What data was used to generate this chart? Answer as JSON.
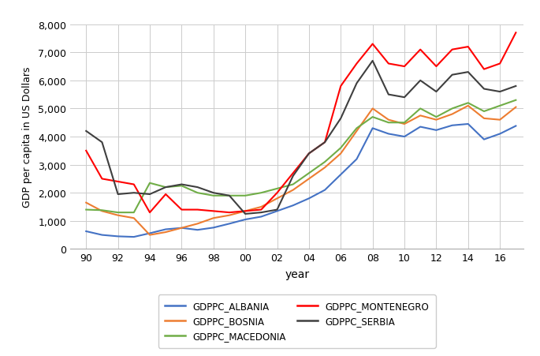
{
  "years": [
    1990,
    1991,
    1992,
    1993,
    1994,
    1995,
    1996,
    1997,
    1998,
    1999,
    2000,
    2001,
    2002,
    2003,
    2004,
    2005,
    2006,
    2007,
    2008,
    2009,
    2010,
    2011,
    2012,
    2013,
    2014,
    2015,
    2016,
    2017
  ],
  "albania": [
    630,
    500,
    450,
    430,
    560,
    700,
    750,
    680,
    760,
    900,
    1050,
    1150,
    1350,
    1550,
    1800,
    2100,
    2650,
    3200,
    4300,
    4100,
    4000,
    4350,
    4230,
    4400,
    4450,
    3900,
    4100,
    4380
  ],
  "bosnia": [
    1650,
    1350,
    1200,
    1100,
    500,
    600,
    750,
    900,
    1100,
    1200,
    1350,
    1500,
    1800,
    2100,
    2500,
    2900,
    3400,
    4200,
    5000,
    4600,
    4450,
    4750,
    4600,
    4800,
    5100,
    4650,
    4600,
    5050
  ],
  "macedonia": [
    1400,
    1380,
    1300,
    1300,
    2350,
    2200,
    2250,
    2000,
    1900,
    1900,
    1900,
    2000,
    2150,
    2300,
    2700,
    3100,
    3600,
    4300,
    4700,
    4500,
    4500,
    5000,
    4700,
    5000,
    5200,
    4900,
    5100,
    5300
  ],
  "montenegro": [
    3500,
    2500,
    2400,
    2300,
    1300,
    1950,
    1400,
    1400,
    1350,
    1300,
    1350,
    1400,
    2000,
    2700,
    3400,
    3800,
    5800,
    6600,
    7300,
    6600,
    6500,
    7100,
    6500,
    7100,
    7200,
    6400,
    6600,
    7700
  ],
  "serbia": [
    4200,
    3800,
    1950,
    2000,
    1950,
    2200,
    2300,
    2200,
    2000,
    1900,
    1250,
    1300,
    1400,
    2600,
    3400,
    3800,
    4650,
    5900,
    6700,
    5500,
    5400,
    6000,
    5600,
    6200,
    6300,
    5700,
    5600,
    5800
  ],
  "colors": {
    "albania": "#4472C4",
    "bosnia": "#ED7D31",
    "macedonia": "#70AD47",
    "montenegro": "#FF0000",
    "serbia": "#3F3F3F"
  },
  "ylabel": "GDP per capita in US Dollars",
  "xlabel": "year",
  "ylim": [
    0,
    8000
  ],
  "yticks": [
    0,
    1000,
    2000,
    3000,
    4000,
    5000,
    6000,
    7000,
    8000
  ],
  "xtick_years": [
    1990,
    1992,
    1994,
    1996,
    1998,
    2000,
    2002,
    2004,
    2006,
    2008,
    2010,
    2012,
    2014,
    2016
  ],
  "xtick_labels": [
    "90",
    "92",
    "94",
    "96",
    "98",
    "00",
    "02",
    "04",
    "06",
    "08",
    "10",
    "12",
    "14",
    "16"
  ],
  "legend": [
    {
      "label": "GDPPC_ALBANIA",
      "color": "#4472C4"
    },
    {
      "label": "GDPPC_BOSNIA",
      "color": "#ED7D31"
    },
    {
      "label": "GDPPC_MACEDONIA",
      "color": "#70AD47"
    },
    {
      "label": "GDPPC_MONTENEGRO",
      "color": "#FF0000"
    },
    {
      "label": "GDPPC_SERBIA",
      "color": "#3F3F3F"
    }
  ]
}
